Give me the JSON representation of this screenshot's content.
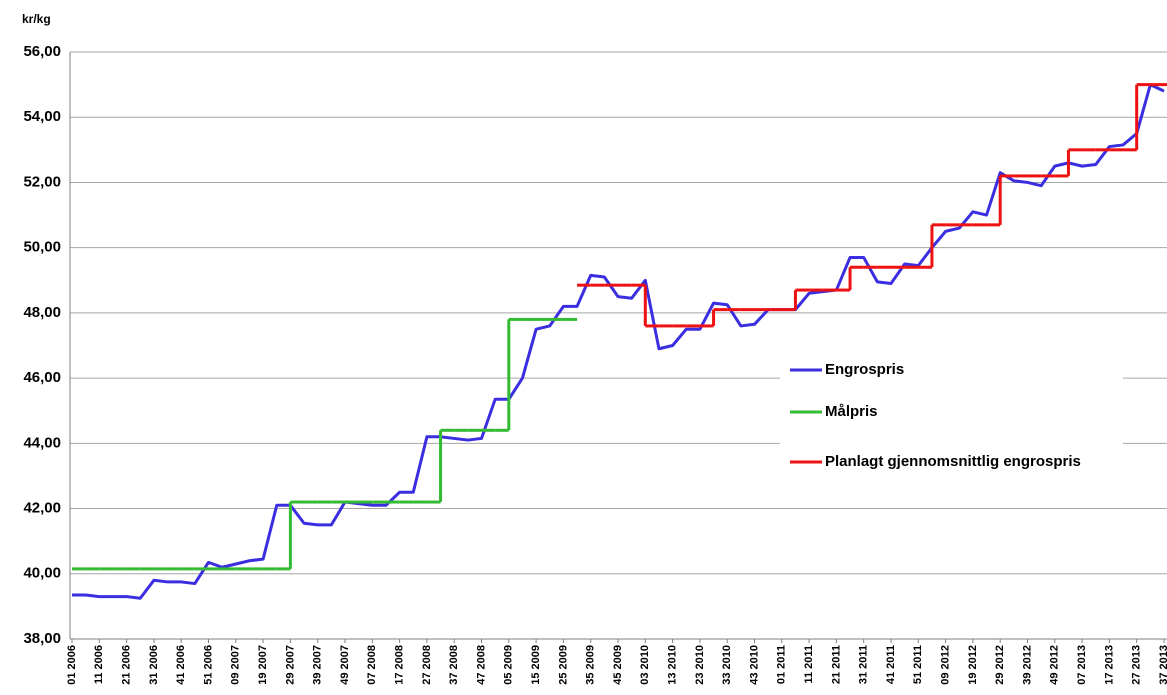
{
  "chart_data": {
    "type": "line",
    "y_unit": "kr/kg",
    "categories": [
      "01 2006",
      null,
      "11 2006",
      null,
      "21 2006",
      null,
      "31 2006",
      null,
      "41 2006",
      null,
      "51 2006",
      null,
      "09 2007",
      null,
      "19 2007",
      null,
      "29 2007",
      null,
      "39 2007",
      null,
      "49 2007",
      null,
      "07 2008",
      null,
      "17 2008",
      null,
      "27 2008",
      null,
      "37 2008",
      null,
      "47 2008",
      null,
      "05 2009",
      null,
      "15 2009",
      null,
      "25 2009",
      null,
      "35 2009",
      null,
      "45 2009",
      null,
      "03 2010",
      null,
      "13 2010",
      null,
      "23 2010",
      null,
      "33 2010",
      null,
      "43 2010",
      null,
      "01 2011",
      null,
      "11 2011",
      null,
      "21 2011",
      null,
      "31 2011",
      null,
      "41 2011",
      null,
      "51 2011",
      null,
      "09 2012",
      null,
      "19 2012",
      null,
      "29 2012",
      null,
      "39 2012",
      null,
      "49 2012",
      null,
      "07 2013",
      null,
      "17 2013",
      null,
      "27 2013",
      null,
      "37 2013"
    ],
    "series": [
      {
        "name": "Engrospris",
        "color": "#3a2ee0",
        "step": false,
        "values": [
          39.35,
          39.35,
          39.3,
          39.3,
          39.3,
          39.25,
          39.8,
          39.75,
          39.75,
          39.7,
          40.35,
          40.2,
          40.3,
          40.4,
          40.45,
          42.1,
          42.1,
          41.55,
          41.5,
          41.5,
          42.2,
          42.15,
          42.1,
          42.1,
          42.5,
          42.5,
          44.2,
          44.2,
          44.15,
          44.1,
          44.15,
          45.35,
          45.35,
          46.0,
          47.5,
          47.6,
          48.2,
          48.2,
          49.15,
          49.1,
          48.5,
          48.45,
          49.0,
          46.9,
          47.0,
          47.5,
          47.5,
          48.3,
          48.25,
          47.6,
          47.65,
          48.1,
          48.1,
          48.1,
          48.6,
          48.65,
          48.7,
          49.7,
          49.7,
          48.95,
          48.9,
          49.5,
          49.45,
          50.0,
          50.5,
          50.6,
          51.1,
          51.0,
          52.3,
          52.05,
          52.0,
          51.9,
          52.5,
          52.6,
          52.5,
          52.55,
          53.1,
          53.15,
          53.5,
          55.0,
          54.8
        ]
      },
      {
        "name": "Målpris",
        "color": "#33bb33",
        "step": true,
        "values": [
          40.15,
          40.15,
          40.15,
          40.15,
          40.15,
          40.15,
          40.15,
          40.15,
          40.15,
          40.15,
          40.15,
          40.15,
          40.15,
          40.15,
          40.15,
          40.15,
          42.2,
          42.2,
          42.2,
          42.2,
          42.2,
          42.2,
          42.2,
          42.2,
          42.2,
          42.2,
          42.2,
          44.4,
          44.4,
          44.4,
          44.4,
          44.4,
          47.8,
          47.8,
          47.8,
          47.8,
          47.8,
          47.8,
          null,
          null,
          null,
          null,
          null,
          null,
          null,
          null,
          null,
          null,
          null,
          null,
          null,
          null,
          null,
          null,
          null,
          null,
          null,
          null,
          null,
          null,
          null,
          null,
          null,
          null,
          null,
          null,
          null,
          null,
          null,
          null,
          null,
          null,
          null,
          null,
          null,
          null,
          null,
          null,
          null,
          null,
          null
        ]
      },
      {
        "name": "Planlagt gjennomsnittlig engrospris",
        "color": "#ee1111",
        "step": true,
        "values": [
          null,
          null,
          null,
          null,
          null,
          null,
          null,
          null,
          null,
          null,
          null,
          null,
          null,
          null,
          null,
          null,
          null,
          null,
          null,
          null,
          null,
          null,
          null,
          null,
          null,
          null,
          null,
          null,
          null,
          null,
          null,
          null,
          null,
          null,
          null,
          null,
          null,
          48.85,
          48.85,
          48.85,
          48.85,
          48.85,
          47.6,
          47.6,
          47.6,
          47.6,
          47.6,
          48.1,
          48.1,
          48.1,
          48.1,
          48.1,
          48.1,
          48.7,
          48.7,
          48.7,
          48.7,
          49.4,
          49.4,
          49.4,
          49.4,
          49.4,
          49.4,
          50.7,
          50.7,
          50.7,
          50.7,
          50.7,
          52.2,
          52.2,
          52.2,
          52.2,
          52.2,
          53.0,
          53.0,
          53.0,
          53.0,
          53.0,
          55.0,
          55.0,
          55.0
        ]
      }
    ],
    "ylim": [
      38,
      56
    ],
    "yticks": [
      {
        "value": 38,
        "label": "38,00"
      },
      {
        "value": 40,
        "label": "40,00"
      },
      {
        "value": 42,
        "label": "42,00"
      },
      {
        "value": 44,
        "label": "44,00"
      },
      {
        "value": 46,
        "label": "46,00"
      },
      {
        "value": 48,
        "label": "48,00"
      },
      {
        "value": 50,
        "label": "50,00"
      },
      {
        "value": 52,
        "label": "52,00"
      },
      {
        "value": 54,
        "label": "54,00"
      },
      {
        "value": 56,
        "label": "56,00"
      }
    ],
    "grid": true,
    "legend_position": "right"
  }
}
